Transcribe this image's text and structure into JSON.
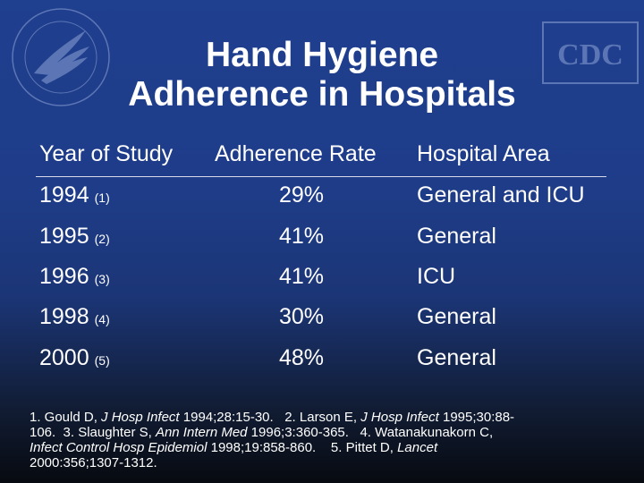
{
  "title": {
    "line1": "Hand Hygiene",
    "line2": "Adherence in Hospitals"
  },
  "logos": {
    "left": "hhs-eagle-logo",
    "right": "CDC"
  },
  "table": {
    "headers": [
      "Year of Study",
      "Adherence Rate",
      "Hospital Area"
    ],
    "rows": [
      {
        "year": "1994",
        "ref": "(1)",
        "rate": "29%",
        "area": "General and ICU"
      },
      {
        "year": "1995",
        "ref": "(2)",
        "rate": "41%",
        "area": "General"
      },
      {
        "year": "1996",
        "ref": "(3)",
        "rate": "41%",
        "area": "ICU"
      },
      {
        "year": "1998",
        "ref": "(4)",
        "rate": "30%",
        "area": "General"
      },
      {
        "year": "2000",
        "ref": "(5)",
        "rate": "48%",
        "area": "General"
      }
    ]
  },
  "references": {
    "r1_author": "1. Gould D, ",
    "r1_journal": "J Hosp Infect",
    "r1_detail": " 1994;28:15-30.",
    "r2_author": "2. Larson E, ",
    "r2_journal": "J Hosp Infect",
    "r2_detail_a": " 1995;30:88-",
    "r2_detail_b": "106.",
    "r3_author": "3. Slaughter S, ",
    "r3_journal": "Ann Intern Med",
    "r3_detail": " 1996;3:360-365.",
    "r4_author": "4. Watanakunakorn C,",
    "r4_journal": "Infect Control Hosp Epidemiol",
    "r4_detail": " 1998;19:858-860.",
    "r5_author": "5. Pittet D, ",
    "r5_journal": "Lancet",
    "r5_detail": "2000:356;1307-1312."
  }
}
